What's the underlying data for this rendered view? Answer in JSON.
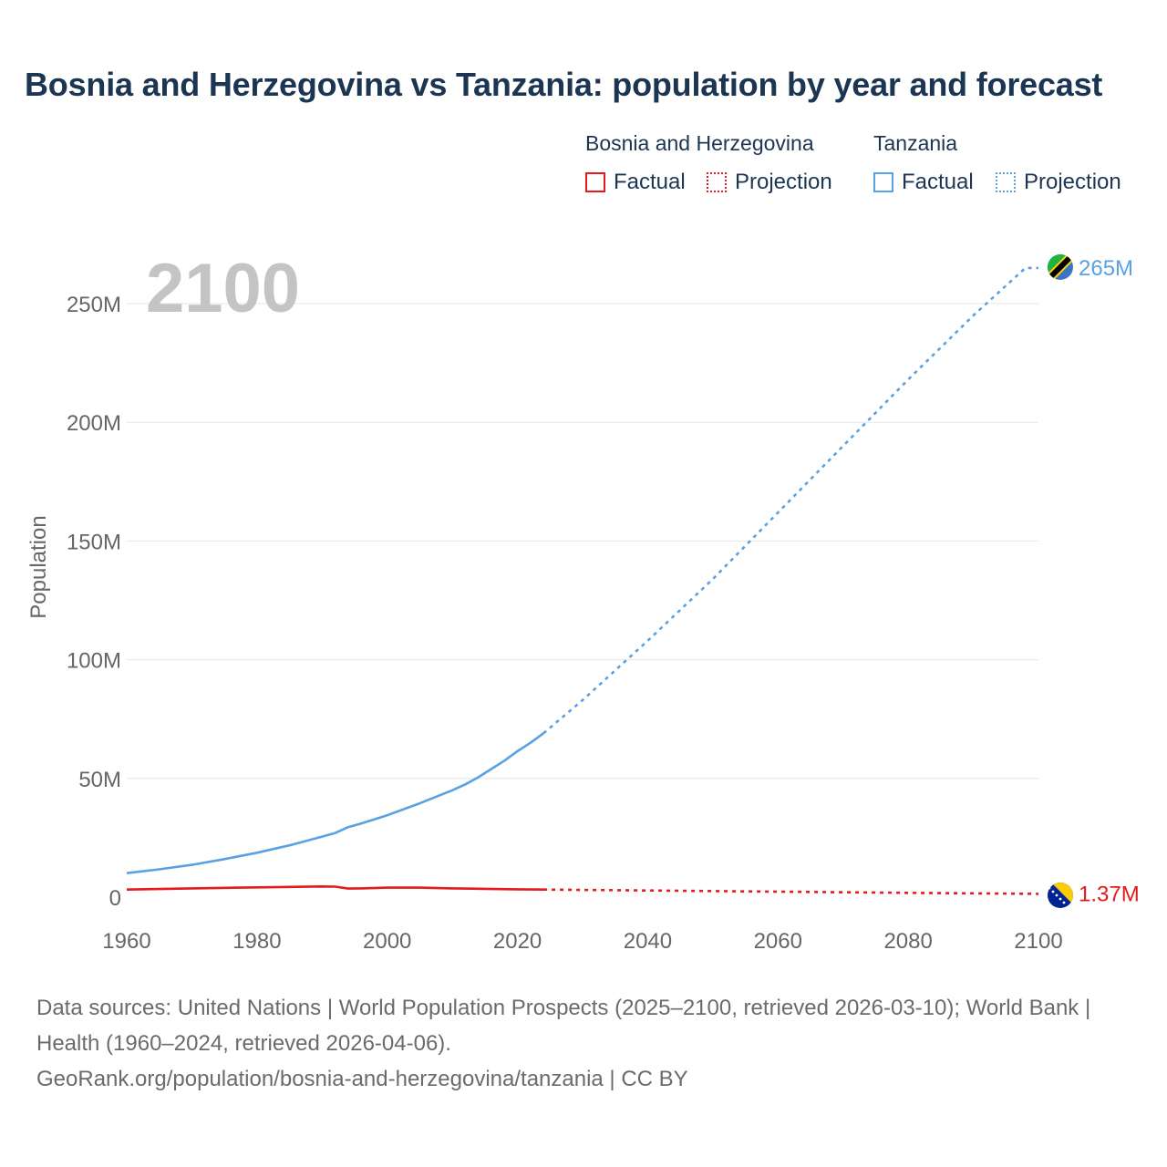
{
  "title": "Bosnia and Herzegovina vs Tanzania: population by year and forecast",
  "legend": {
    "groups": [
      {
        "name": "Bosnia and Herzegovina",
        "factual": "Factual",
        "projection": "Projection",
        "color": "#e41a1c"
      },
      {
        "name": "Tanzania",
        "factual": "Factual",
        "projection": "Projection",
        "color": "#5aa1e3"
      }
    ]
  },
  "footer": {
    "sources": "Data sources: United Nations | World Population Prospects (2025–2100, retrieved 2026-03-10); World Bank | Health (1960–2024, retrieved 2026-04-06).",
    "credit": "GeoRank.org/population/bosnia-and-herzegovina/tanzania | CC BY"
  },
  "chart_data": {
    "type": "line",
    "year_label": "2100",
    "ylabel": "Population",
    "xlim": [
      1960,
      2100
    ],
    "ylim": [
      0,
      250
    ],
    "x_ticks": [
      1960,
      1980,
      2000,
      2020,
      2040,
      2060,
      2080,
      2100
    ],
    "x_tick_labels": [
      "1960",
      "1980",
      "2000",
      "2020",
      "2040",
      "2060",
      "2080",
      "2100"
    ],
    "y_ticks": [
      0,
      50,
      100,
      150,
      200,
      250
    ],
    "y_tick_labels": [
      "0",
      "50M",
      "100M",
      "150M",
      "200M",
      "250M"
    ],
    "unit": "millions",
    "series": [
      {
        "name": "Tanzania",
        "color": "#5aa1e3",
        "end_label": "265M",
        "flag": "tanzania-flag",
        "factual": {
          "x": [
            1960,
            1965,
            1970,
            1975,
            1980,
            1985,
            1990,
            1992,
            1994,
            1996,
            2000,
            2005,
            2010,
            2012,
            2014,
            2016,
            2018,
            2020,
            2022,
            2024
          ],
          "y": [
            10.1,
            11.7,
            13.6,
            16.0,
            18.7,
            21.8,
            25.5,
            27.0,
            29.5,
            31.0,
            34.5,
            39.5,
            45.0,
            47.5,
            50.5,
            54.0,
            57.5,
            61.5,
            65.0,
            69.0
          ]
        },
        "projection": {
          "x": [
            2024,
            2030,
            2040,
            2050,
            2060,
            2070,
            2080,
            2090,
            2098,
            2100
          ],
          "y": [
            69.0,
            83.0,
            108.0,
            134.0,
            162.0,
            190.0,
            218.0,
            245.0,
            265.0,
            265.0
          ]
        }
      },
      {
        "name": "Bosnia and Herzegovina",
        "color": "#e41a1c",
        "end_label": "1.37M",
        "flag": "bosnia-flag",
        "factual": {
          "x": [
            1960,
            1970,
            1980,
            1990,
            1992,
            1994,
            1996,
            2000,
            2005,
            2010,
            2015,
            2020,
            2024
          ],
          "y": [
            3.2,
            3.7,
            4.1,
            4.5,
            4.4,
            3.6,
            3.7,
            4.0,
            4.0,
            3.7,
            3.5,
            3.3,
            3.2
          ]
        },
        "projection": {
          "x": [
            2024,
            2040,
            2060,
            2080,
            2100
          ],
          "y": [
            3.2,
            2.8,
            2.3,
            1.8,
            1.37
          ]
        }
      }
    ]
  }
}
